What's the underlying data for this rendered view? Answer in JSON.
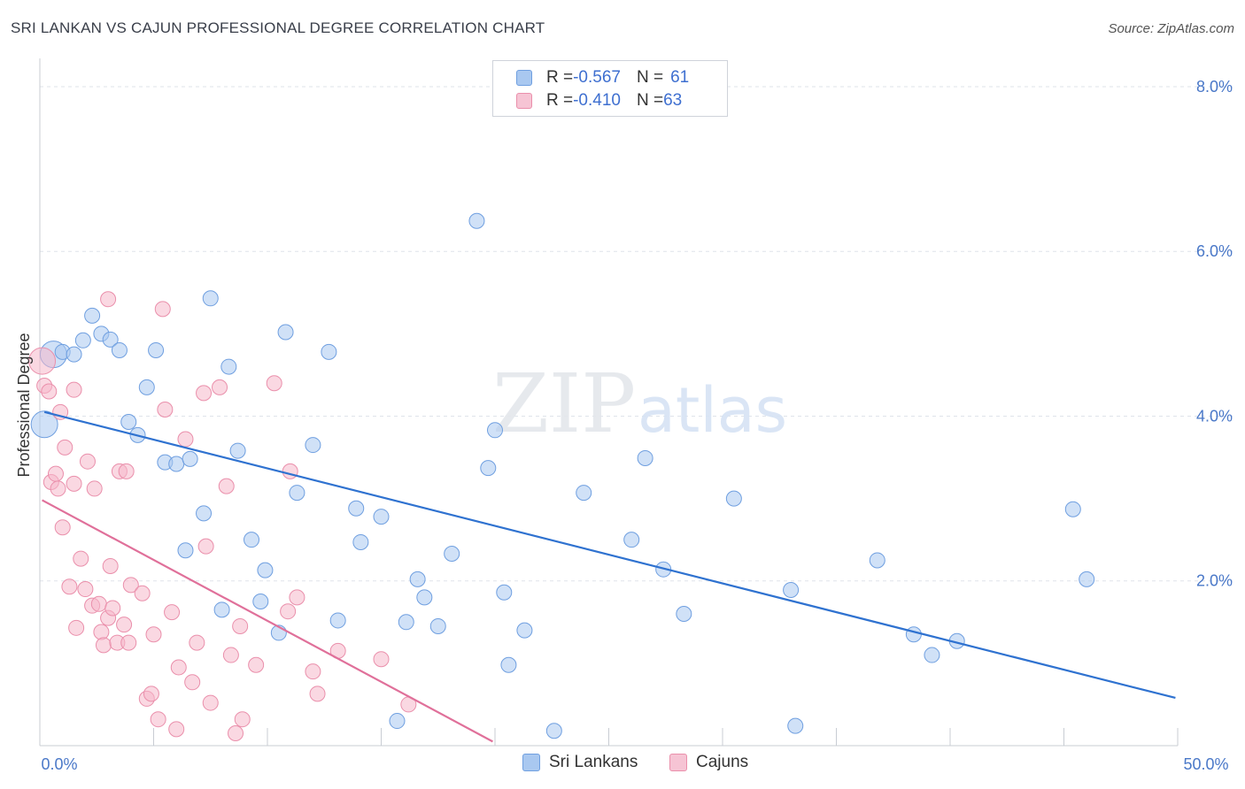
{
  "header": {
    "title": "SRI LANKAN VS CAJUN PROFESSIONAL DEGREE CORRELATION CHART",
    "source": "Source: ZipAtlas.com"
  },
  "legend": {
    "rows": [
      {
        "r_label": "R = ",
        "r_value": "-0.567",
        "n_label": "N = ",
        "n_value": "61"
      },
      {
        "r_label": "R = ",
        "r_value": "-0.410",
        "n_label": "N = ",
        "n_value": "63"
      }
    ]
  },
  "watermark": {
    "zip": "ZIP",
    "atlas": "atlas"
  },
  "colors": {
    "blue_fill": "#a9c8f0",
    "blue_stroke": "#6f9fe0",
    "blue_line": "#2f72d0",
    "pink_fill": "#f6b8cb",
    "pink_stroke": "#ea8fab",
    "pink_line": "#e0709a",
    "tick_text": "#4a78c8",
    "grid": "#dfe3ea"
  },
  "chart_data": {
    "type": "scatter",
    "title": "SRI LANKAN VS CAJUN PROFESSIONAL DEGREE CORRELATION CHART",
    "ylabel": "Professional Degree",
    "xlabel": "",
    "xlim": [
      0,
      50
    ],
    "ylim": [
      0,
      8.3
    ],
    "x_tick_labels": [
      {
        "value": 0,
        "label": "0.0%"
      },
      {
        "value": 50,
        "label": "50.0%"
      }
    ],
    "y_tick_labels": [
      {
        "value": 2,
        "label": "2.0%"
      },
      {
        "value": 4,
        "label": "4.0%"
      },
      {
        "value": 6,
        "label": "6.0%"
      },
      {
        "value": 8,
        "label": "8.0%"
      }
    ],
    "grid": true,
    "legend_position": "top-center",
    "series": [
      {
        "name": "Sri Lankans",
        "color": "#a9c8f0",
        "trendline": {
          "x": [
            0.2,
            49.9
          ],
          "y": [
            4.05,
            0.58
          ]
        },
        "points": [
          {
            "x": 0.2,
            "y": 3.9,
            "big": true
          },
          {
            "x": 0.6,
            "y": 4.75,
            "big": true
          },
          {
            "x": 1.0,
            "y": 4.78
          },
          {
            "x": 1.5,
            "y": 4.75
          },
          {
            "x": 1.9,
            "y": 4.92
          },
          {
            "x": 2.3,
            "y": 5.22
          },
          {
            "x": 2.7,
            "y": 5.0
          },
          {
            "x": 3.1,
            "y": 4.93
          },
          {
            "x": 3.5,
            "y": 4.8
          },
          {
            "x": 3.9,
            "y": 3.93
          },
          {
            "x": 4.3,
            "y": 3.77
          },
          {
            "x": 4.7,
            "y": 4.35
          },
          {
            "x": 5.1,
            "y": 4.8
          },
          {
            "x": 5.5,
            "y": 3.44
          },
          {
            "x": 6.0,
            "y": 3.42
          },
          {
            "x": 6.4,
            "y": 2.37
          },
          {
            "x": 6.6,
            "y": 3.48
          },
          {
            "x": 7.2,
            "y": 2.82
          },
          {
            "x": 7.5,
            "y": 5.43
          },
          {
            "x": 8.0,
            "y": 1.65
          },
          {
            "x": 8.3,
            "y": 4.6
          },
          {
            "x": 8.7,
            "y": 3.58
          },
          {
            "x": 9.3,
            "y": 2.5
          },
          {
            "x": 9.7,
            "y": 1.75
          },
          {
            "x": 9.9,
            "y": 2.13
          },
          {
            "x": 10.5,
            "y": 1.37
          },
          {
            "x": 10.8,
            "y": 5.02
          },
          {
            "x": 11.3,
            "y": 3.07
          },
          {
            "x": 12.0,
            "y": 3.65
          },
          {
            "x": 12.7,
            "y": 4.78
          },
          {
            "x": 13.1,
            "y": 1.52
          },
          {
            "x": 13.9,
            "y": 2.88
          },
          {
            "x": 14.1,
            "y": 2.47
          },
          {
            "x": 15.0,
            "y": 2.78
          },
          {
            "x": 15.7,
            "y": 0.3
          },
          {
            "x": 16.1,
            "y": 1.5
          },
          {
            "x": 16.6,
            "y": 2.02
          },
          {
            "x": 16.9,
            "y": 1.8
          },
          {
            "x": 17.5,
            "y": 1.45
          },
          {
            "x": 18.1,
            "y": 2.33
          },
          {
            "x": 19.2,
            "y": 6.37
          },
          {
            "x": 19.7,
            "y": 3.37
          },
          {
            "x": 20.0,
            "y": 3.83
          },
          {
            "x": 20.4,
            "y": 1.86
          },
          {
            "x": 20.6,
            "y": 0.98
          },
          {
            "x": 21.3,
            "y": 1.4
          },
          {
            "x": 22.6,
            "y": 0.18
          },
          {
            "x": 23.9,
            "y": 3.07
          },
          {
            "x": 26.0,
            "y": 2.5
          },
          {
            "x": 26.6,
            "y": 3.49
          },
          {
            "x": 27.4,
            "y": 2.14
          },
          {
            "x": 28.3,
            "y": 1.6
          },
          {
            "x": 30.5,
            "y": 3.0
          },
          {
            "x": 33.0,
            "y": 1.89
          },
          {
            "x": 33.2,
            "y": 0.24
          },
          {
            "x": 36.8,
            "y": 2.25
          },
          {
            "x": 38.4,
            "y": 1.35
          },
          {
            "x": 39.2,
            "y": 1.1
          },
          {
            "x": 40.3,
            "y": 1.27
          },
          {
            "x": 45.4,
            "y": 2.87
          },
          {
            "x": 46.0,
            "y": 2.02
          }
        ]
      },
      {
        "name": "Cajuns",
        "color": "#f6b8cb",
        "trendline": {
          "x": [
            0.1,
            19.9
          ],
          "y": [
            2.98,
            0.05
          ]
        },
        "points": [
          {
            "x": 0.1,
            "y": 4.67,
            "big": true
          },
          {
            "x": 0.2,
            "y": 4.37
          },
          {
            "x": 0.4,
            "y": 4.3
          },
          {
            "x": 0.5,
            "y": 3.2
          },
          {
            "x": 0.7,
            "y": 3.3
          },
          {
            "x": 0.8,
            "y": 3.12
          },
          {
            "x": 0.9,
            "y": 4.05
          },
          {
            "x": 1.0,
            "y": 2.65
          },
          {
            "x": 1.1,
            "y": 3.62
          },
          {
            "x": 1.3,
            "y": 1.93
          },
          {
            "x": 1.5,
            "y": 4.32
          },
          {
            "x": 1.5,
            "y": 3.18
          },
          {
            "x": 1.6,
            "y": 1.43
          },
          {
            "x": 1.8,
            "y": 2.27
          },
          {
            "x": 2.0,
            "y": 1.9
          },
          {
            "x": 2.1,
            "y": 3.45
          },
          {
            "x": 2.3,
            "y": 1.7
          },
          {
            "x": 2.4,
            "y": 3.12
          },
          {
            "x": 2.6,
            "y": 1.72
          },
          {
            "x": 2.7,
            "y": 1.38
          },
          {
            "x": 2.8,
            "y": 1.22
          },
          {
            "x": 3.0,
            "y": 1.55
          },
          {
            "x": 3.0,
            "y": 5.42
          },
          {
            "x": 3.1,
            "y": 2.18
          },
          {
            "x": 3.2,
            "y": 1.67
          },
          {
            "x": 3.4,
            "y": 1.25
          },
          {
            "x": 3.5,
            "y": 3.33
          },
          {
            "x": 3.7,
            "y": 1.47
          },
          {
            "x": 3.8,
            "y": 3.33
          },
          {
            "x": 3.9,
            "y": 1.25
          },
          {
            "x": 4.0,
            "y": 1.95
          },
          {
            "x": 4.5,
            "y": 1.85
          },
          {
            "x": 4.7,
            "y": 0.57
          },
          {
            "x": 4.9,
            "y": 0.63
          },
          {
            "x": 5.0,
            "y": 1.35
          },
          {
            "x": 5.2,
            "y": 0.32
          },
          {
            "x": 5.4,
            "y": 5.3
          },
          {
            "x": 5.5,
            "y": 4.08
          },
          {
            "x": 5.8,
            "y": 1.62
          },
          {
            "x": 6.0,
            "y": 0.2
          },
          {
            "x": 6.1,
            "y": 0.95
          },
          {
            "x": 6.4,
            "y": 3.72
          },
          {
            "x": 6.7,
            "y": 0.77
          },
          {
            "x": 6.9,
            "y": 1.25
          },
          {
            "x": 7.2,
            "y": 4.28
          },
          {
            "x": 7.3,
            "y": 2.42
          },
          {
            "x": 7.5,
            "y": 0.52
          },
          {
            "x": 7.9,
            "y": 4.35
          },
          {
            "x": 8.2,
            "y": 3.15
          },
          {
            "x": 8.4,
            "y": 1.1
          },
          {
            "x": 8.6,
            "y": 0.15
          },
          {
            "x": 8.8,
            "y": 1.45
          },
          {
            "x": 8.9,
            "y": 0.32
          },
          {
            "x": 9.5,
            "y": 0.98
          },
          {
            "x": 10.3,
            "y": 4.4
          },
          {
            "x": 10.9,
            "y": 1.63
          },
          {
            "x": 11.0,
            "y": 3.33
          },
          {
            "x": 11.3,
            "y": 1.8
          },
          {
            "x": 12.0,
            "y": 0.9
          },
          {
            "x": 12.2,
            "y": 0.63
          },
          {
            "x": 13.1,
            "y": 1.15
          },
          {
            "x": 15.0,
            "y": 1.05
          },
          {
            "x": 16.2,
            "y": 0.5
          }
        ]
      }
    ]
  }
}
